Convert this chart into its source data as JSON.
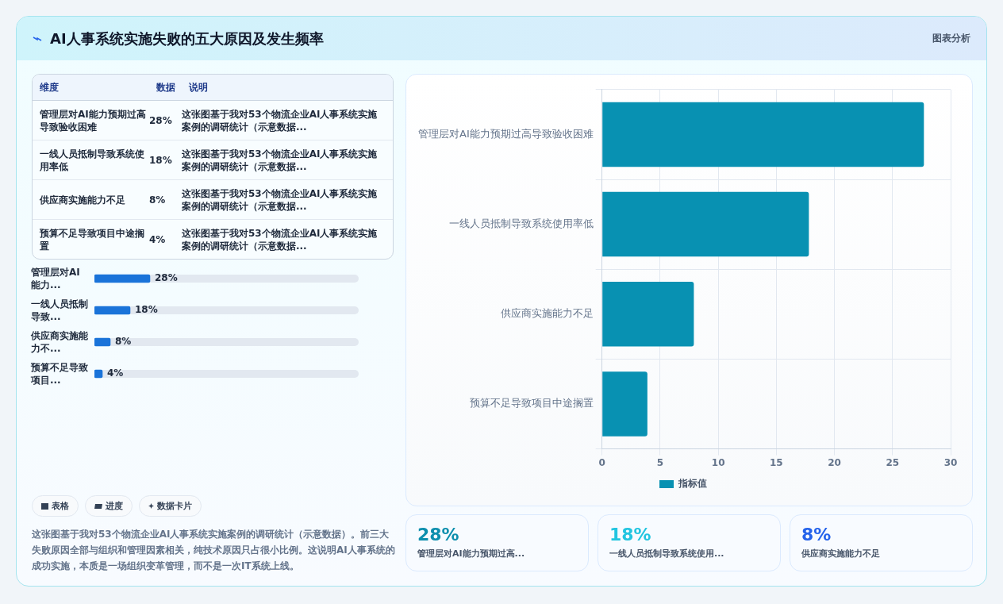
{
  "chart_data": [
    {
      "type": "other",
      "title": "AI人事系统实施失败的五大原因及发生频率",
      "annotations": [
        "图表分析"
      ]
    },
    {
      "type": "bar",
      "orientation": "horizontal",
      "categories": [
        "管理层对AI能力预期过高导致验收困难",
        "一线人员抵制导致系统使用率低",
        "供应商实施能力不足",
        "预算不足导致项目中途搁置"
      ],
      "series": [
        {
          "name": "指标值",
          "color": "#0891b2",
          "values": [
            27.7,
            17.8,
            7.9,
            3.9
          ]
        }
      ],
      "xlim": [
        0,
        30
      ],
      "xticks": [
        0,
        5,
        10,
        15,
        20,
        25,
        30
      ],
      "grid": true,
      "legend": "bottom"
    },
    {
      "type": "other",
      "annotations": [
        "维度",
        "数据",
        "说明",
        "管理层对AI能力预期过高导致验收困难",
        "28%",
        "这张图基于我对53个物流企业AI人事系统实施案例的调研统计（示意数据...",
        "一线人员抵制导致系统使用率低",
        "18%",
        "这张图基于我对53个物流企业AI人事系统实施案例的调研统计（示意数据...",
        "供应商实施能力不足",
        "8%",
        "这张图基于我对53个物流企业AI人事系统实施案例的调研统计（示意数据...",
        "预算不足导致项目中途搁置",
        "4%",
        "这张图基于我对53个物流企业AI人事系统实施案例的调研统计（示意数据..."
      ]
    },
    {
      "type": "bar",
      "orientation": "horizontal",
      "categories": [
        "管理层对AI能力...",
        "一线人员抵制导致...",
        "供应商实施能力不...",
        "预算不足导致项目..."
      ],
      "series": [
        {
          "color": "#1a73d9",
          "values": [
            28,
            18,
            8,
            4
          ],
          "value_labels": [
            "28%",
            "18%",
            "8%",
            "4%"
          ]
        }
      ]
    },
    {
      "type": "other",
      "annotations": [
        "表格",
        "进度",
        "数据卡片",
        "这张图基于我对53个物流企业AI人事系统实施案例的调研统计（示意数据）。前三大失败原因全部与组织和管理因素相关，纯技术原因只占很小比例。这说明AI人事系统的成功实施，本质是一场组织变革管理，而不是一次IT系统上线。"
      ]
    },
    {
      "type": "other",
      "annotations": [
        "28%",
        "管理层对AI能力预期过高...",
        "18%",
        "一线人员抵制导致系统使用...",
        "8%",
        "供应商实施能力不足"
      ]
    }
  ]
}
